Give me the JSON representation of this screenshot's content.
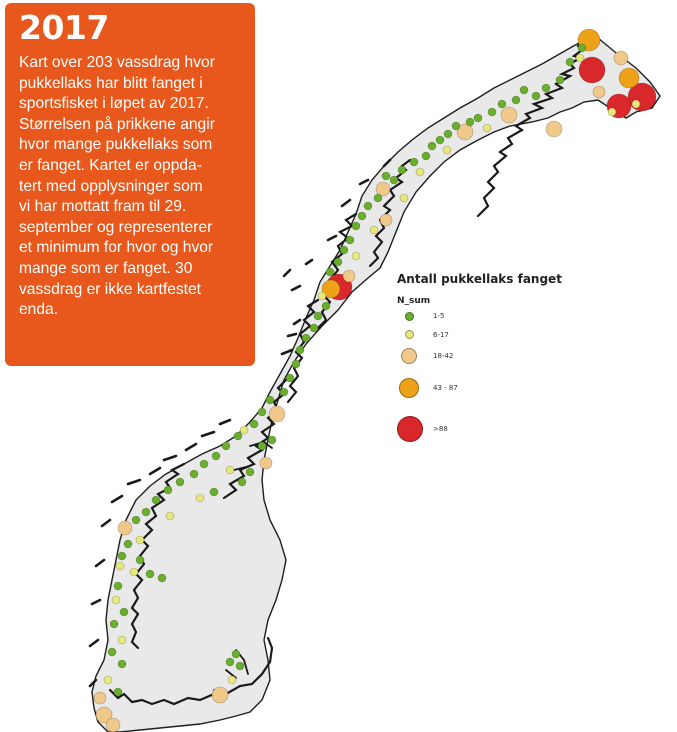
{
  "info": {
    "year": "2017",
    "lines": [
      "Kart over 203 vassdrag hvor",
      "pukkellaks har blitt fanget i",
      "sportsfisket i løpet av 2017.",
      "Størrelsen på prikkene angir",
      "hvor mange pukkellaks som",
      "er fanget. Kartet er oppda-",
      "tert med opplysninger som",
      "vi har mottatt fram til 29.",
      "september og representerer",
      "et minimum for hvor og hvor",
      "mange som er fanget. 30",
      "vassdrag er ikke kartfestet",
      "enda."
    ]
  },
  "legend": {
    "title": "Antall pukkellaks fanget",
    "field": "N_sum",
    "classes": [
      {
        "label": "1-5",
        "color": "#6aae2e"
      },
      {
        "label": "6-17",
        "color": "#e6e87c"
      },
      {
        "label": "18-42",
        "color": "#f0c88a"
      },
      {
        "label": "43 - 87",
        "color": "#eea21a"
      },
      {
        "label": ">88",
        "color": "#d9282b"
      }
    ]
  },
  "colors": {
    "land": "#e9e9ea",
    "coast": "#1e1e1e",
    "box": "#e8581c"
  }
}
